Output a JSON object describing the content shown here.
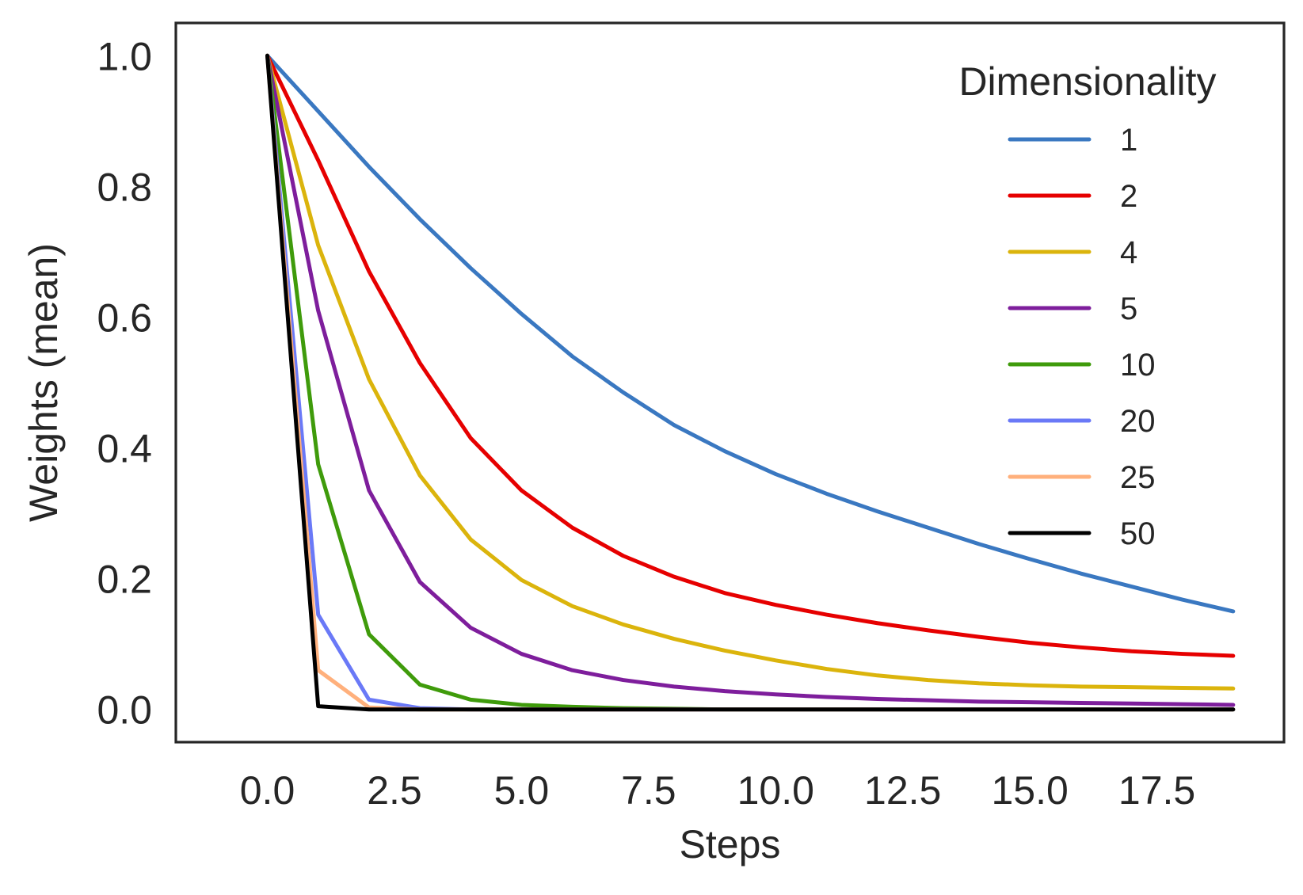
{
  "chart_data": {
    "type": "line",
    "title": "",
    "xlabel": "Steps",
    "ylabel": "Weights (mean)",
    "xlim": [
      -1.8,
      20.0
    ],
    "ylim": [
      -0.05,
      1.05
    ],
    "x_ticks": [
      0.0,
      2.5,
      5.0,
      7.5,
      10.0,
      12.5,
      15.0,
      17.5
    ],
    "x_tick_labels": [
      "0.0",
      "2.5",
      "5.0",
      "7.5",
      "10.0",
      "12.5",
      "15.0",
      "17.5"
    ],
    "y_ticks": [
      0.0,
      0.2,
      0.4,
      0.6,
      0.8,
      1.0
    ],
    "y_tick_labels": [
      "0.0",
      "0.2",
      "0.4",
      "0.6",
      "0.8",
      "1.0"
    ],
    "grid": false,
    "legend": {
      "title": "Dimensionality",
      "placement": "top-right"
    },
    "x": [
      0,
      1,
      2,
      3,
      4,
      5,
      6,
      7,
      8,
      9,
      10,
      11,
      12,
      13,
      14,
      15,
      16,
      17,
      18,
      19
    ],
    "series": [
      {
        "name": "1",
        "color": "#3a78c1",
        "values": [
          1.0,
          0.915,
          0.83,
          0.75,
          0.675,
          0.605,
          0.54,
          0.485,
          0.435,
          0.395,
          0.36,
          0.33,
          0.303,
          0.278,
          0.253,
          0.23,
          0.208,
          0.188,
          0.168,
          0.15
        ]
      },
      {
        "name": "2",
        "color": "#e60000",
        "values": [
          1.0,
          0.84,
          0.67,
          0.53,
          0.415,
          0.335,
          0.278,
          0.235,
          0.203,
          0.178,
          0.16,
          0.145,
          0.132,
          0.121,
          0.111,
          0.102,
          0.095,
          0.089,
          0.085,
          0.082
        ]
      },
      {
        "name": "4",
        "color": "#dbb40c",
        "values": [
          1.0,
          0.71,
          0.505,
          0.358,
          0.26,
          0.198,
          0.158,
          0.13,
          0.108,
          0.09,
          0.075,
          0.062,
          0.052,
          0.045,
          0.04,
          0.037,
          0.035,
          0.034,
          0.033,
          0.032
        ]
      },
      {
        "name": "5",
        "color": "#7e1e9c",
        "values": [
          1.0,
          0.61,
          0.335,
          0.195,
          0.125,
          0.085,
          0.06,
          0.045,
          0.035,
          0.028,
          0.023,
          0.019,
          0.016,
          0.014,
          0.012,
          0.011,
          0.01,
          0.009,
          0.008,
          0.007
        ]
      },
      {
        "name": "10",
        "color": "#3f9b0b",
        "values": [
          1.0,
          0.375,
          0.115,
          0.038,
          0.015,
          0.007,
          0.004,
          0.002,
          0.001,
          0.0,
          0.0,
          0.0,
          0.0,
          0.0,
          0.0,
          0.0,
          0.0,
          0.0,
          0.0,
          0.0
        ]
      },
      {
        "name": "20",
        "color": "#6a79f7",
        "values": [
          1.0,
          0.145,
          0.015,
          0.002,
          0.0,
          0.0,
          0.0,
          0.0,
          0.0,
          0.0,
          0.0,
          0.0,
          0.0,
          0.0,
          0.0,
          0.0,
          0.0,
          0.0,
          0.0,
          0.0
        ]
      },
      {
        "name": "25",
        "color": "#ffb07c",
        "values": [
          1.0,
          0.06,
          0.003,
          0.0,
          0.0,
          0.0,
          0.0,
          0.0,
          0.0,
          0.0,
          0.0,
          0.0,
          0.0,
          0.0,
          0.0,
          0.0,
          0.0,
          0.0,
          0.0,
          0.0
        ]
      },
      {
        "name": "50",
        "color": "#000000",
        "values": [
          1.0,
          0.005,
          0.0,
          0.0,
          0.0,
          0.0,
          0.0,
          0.0,
          0.0,
          0.0,
          0.0,
          0.0,
          0.0,
          0.0,
          0.0,
          0.0,
          0.0,
          0.0,
          0.0,
          0.0
        ]
      }
    ]
  }
}
